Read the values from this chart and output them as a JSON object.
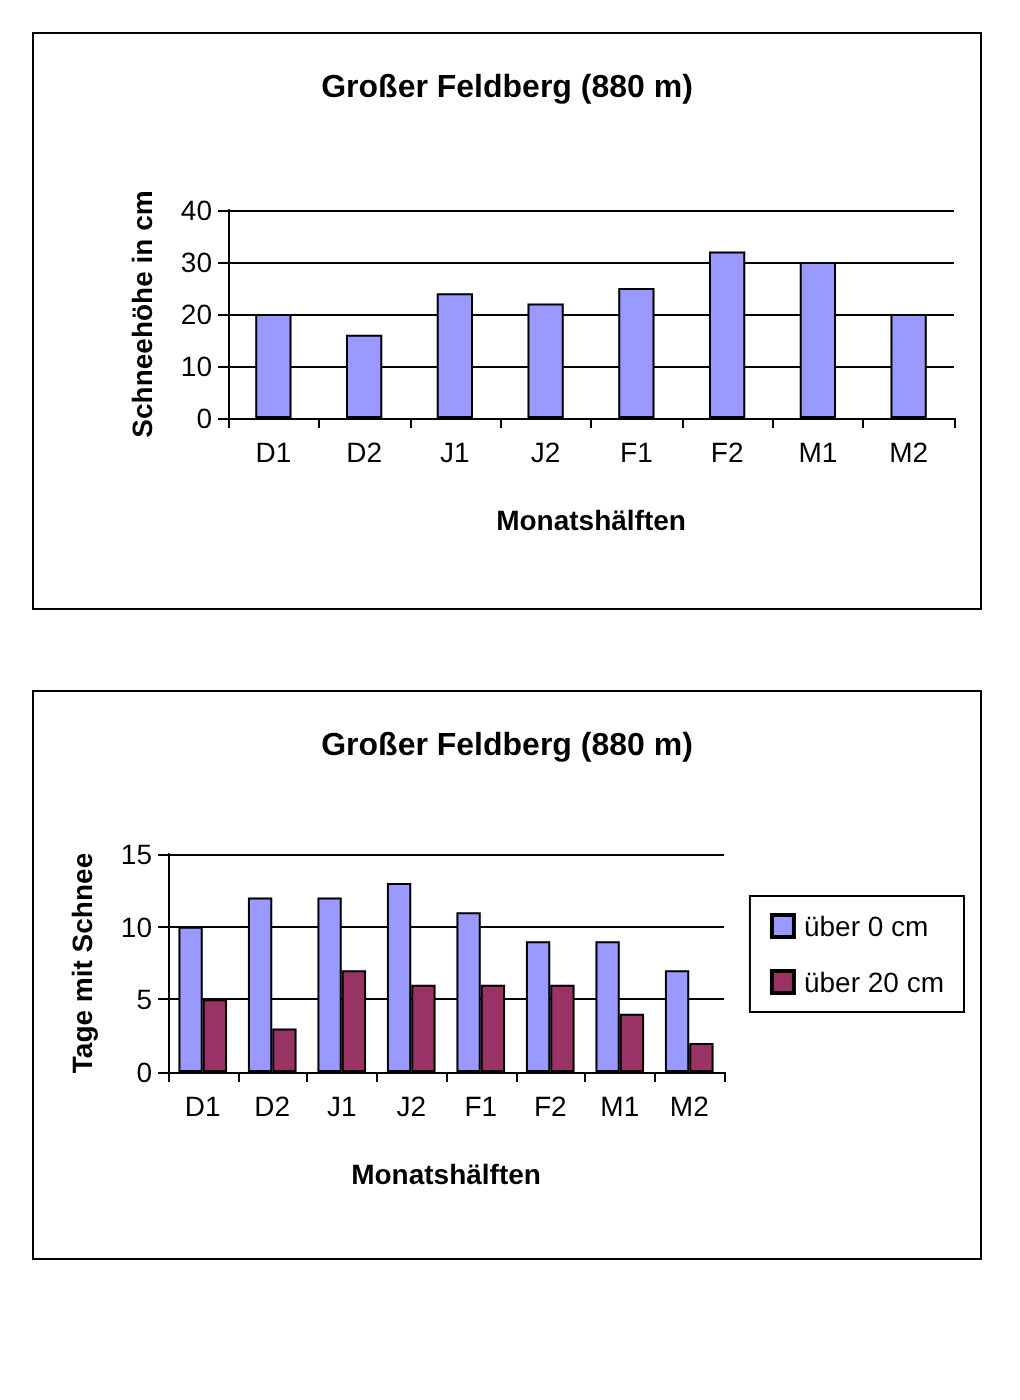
{
  "chart_data": [
    {
      "type": "bar",
      "title": "Großer Feldberg (880 m)",
      "xlabel": "Monatshälften",
      "ylabel": "Schneehöhe in cm",
      "categories": [
        "D1",
        "D2",
        "J1",
        "J2",
        "F1",
        "F2",
        "M1",
        "M2"
      ],
      "values": [
        20,
        16,
        24,
        22,
        25,
        32,
        30,
        20
      ],
      "color": "#9999ff",
      "ylim": [
        0,
        40
      ],
      "yticks": [
        0,
        10,
        20,
        30,
        40
      ],
      "grid": "y",
      "legend": false
    },
    {
      "type": "bar",
      "title": "Großer Feldberg (880 m)",
      "xlabel": "Monatshälften",
      "ylabel": "Tage mit Schnee",
      "categories": [
        "D1",
        "D2",
        "J1",
        "J2",
        "F1",
        "F2",
        "M1",
        "M2"
      ],
      "series": [
        {
          "name": "über 0 cm",
          "color": "#9999ff",
          "values": [
            10,
            12,
            12,
            13,
            11,
            9,
            9,
            7
          ]
        },
        {
          "name": "über 20 cm",
          "color": "#993366",
          "values": [
            5,
            3,
            7,
            6,
            6,
            6,
            4,
            2
          ]
        }
      ],
      "ylim": [
        0,
        15
      ],
      "yticks": [
        0,
        5,
        10,
        15
      ],
      "grid": "y",
      "legend": "right"
    }
  ]
}
